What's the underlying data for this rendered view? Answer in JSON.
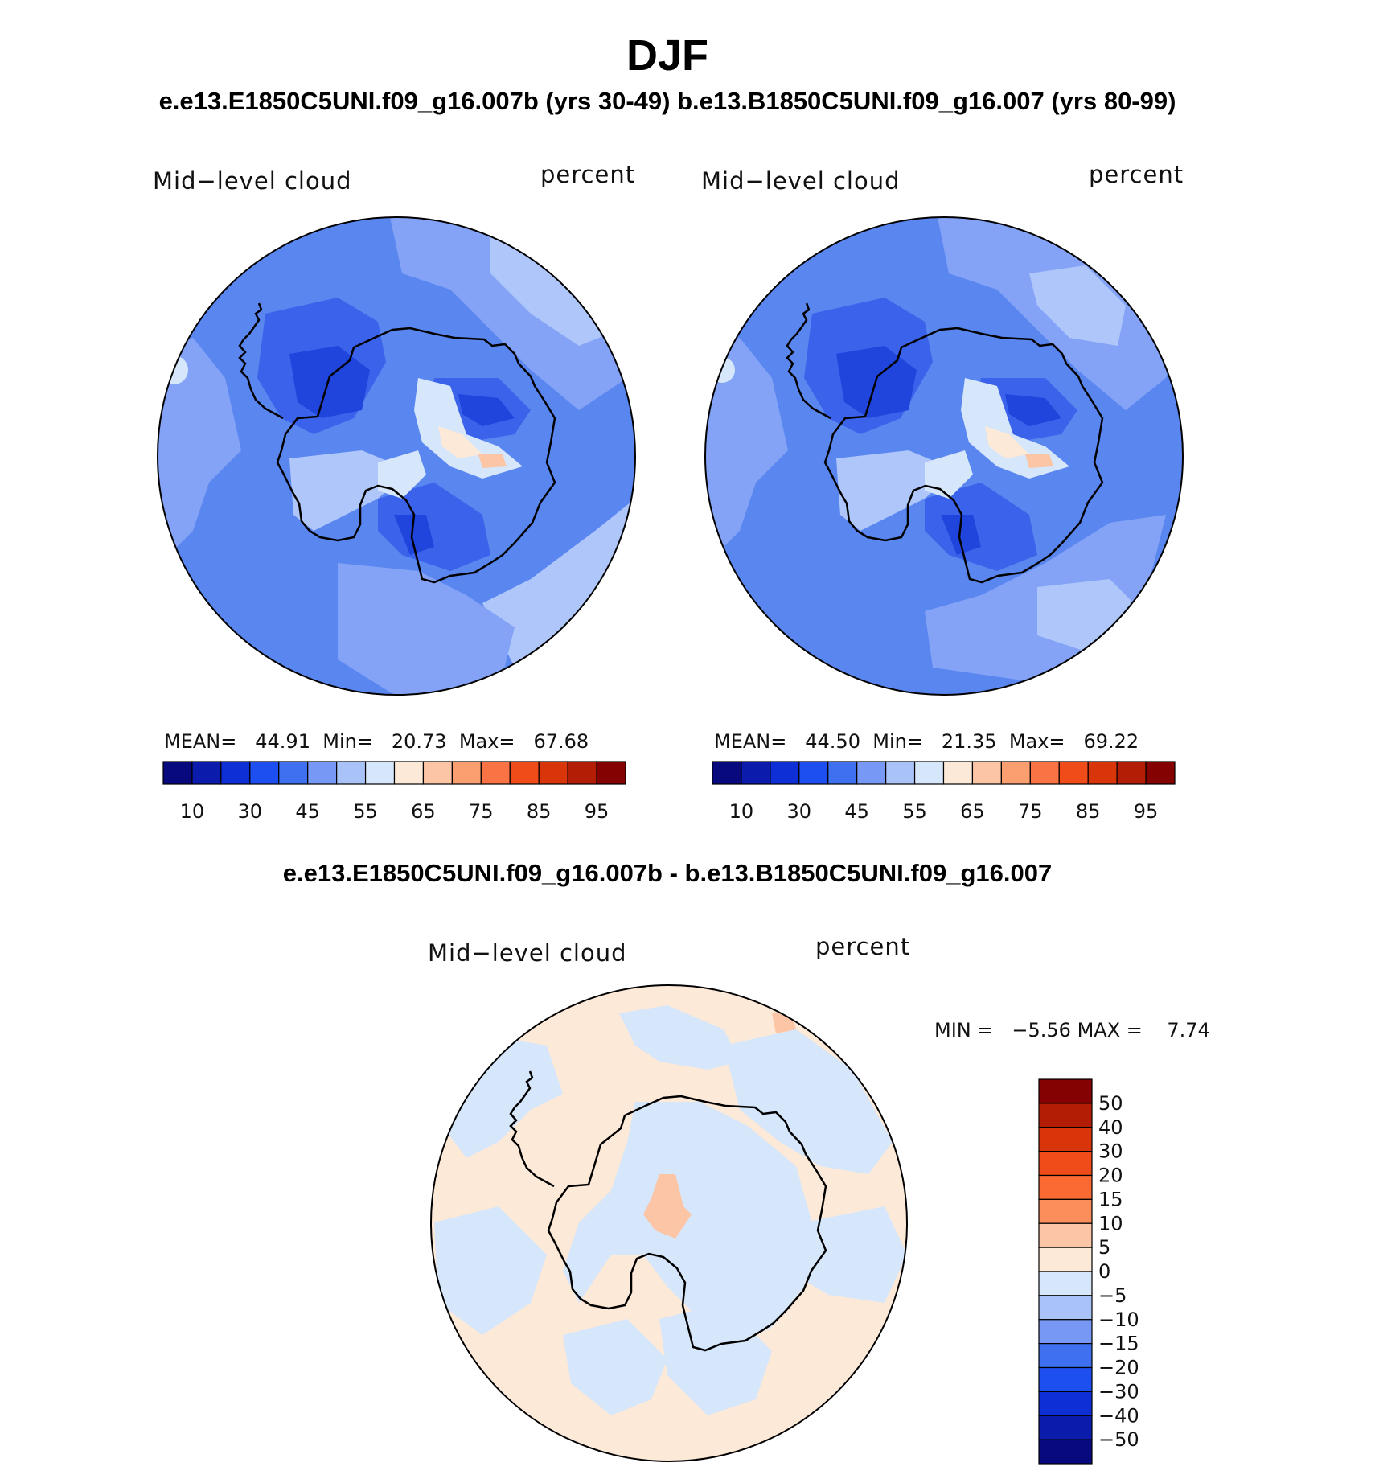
{
  "title": "DJF",
  "subtitle": "e.e13.E1850C5UNI.f09_g16.007b (yrs 30-49)  b.e13.B1850C5UNI.f09_g16.007 (yrs 80-99)",
  "diff_title": "e.e13.E1850C5UNI.f09_g16.007b - b.e13.B1850C5UNI.f09_g16.007",
  "panels": [
    {
      "variable": "Mid−level cloud",
      "units": "percent",
      "mean_label": "MEAN=",
      "mean": "44.91",
      "min_label": "Min=",
      "min": "20.73",
      "max_label": "Max=",
      "max": "67.68"
    },
    {
      "variable": "Mid−level cloud",
      "units": "percent",
      "mean_label": "MEAN=",
      "mean": "44.50",
      "min_label": "Min=",
      "min": "21.35",
      "max_label": "Max=",
      "max": "69.22"
    }
  ],
  "diff_panel": {
    "variable": "Mid−level cloud",
    "units": "percent",
    "min_label": "MIN =",
    "min": "−5.56",
    "max_label": "MAX =",
    "max": "7.74"
  },
  "colorbar": {
    "colors": [
      "#08097d",
      "#0b1bab",
      "#0f2fd6",
      "#1d4ff0",
      "#3f70f0",
      "#7898f5",
      "#a9c2f8",
      "#d6e6fb",
      "#fde9d8",
      "#fcc5a5",
      "#fb9e70",
      "#fa7344",
      "#f04c1a",
      "#d9350a",
      "#b31d05",
      "#850202"
    ],
    "tick_labels": [
      "10",
      "30",
      "45",
      "55",
      "65",
      "75",
      "85",
      "95"
    ]
  },
  "diff_colorbar": {
    "colors": [
      "#850202",
      "#b31d05",
      "#d9350a",
      "#f04c1a",
      "#fb6a33",
      "#fb8e5a",
      "#fcc5a5",
      "#fde9d8",
      "#d6e6fb",
      "#a9c2f8",
      "#7898f5",
      "#3f70f0",
      "#1d4ff0",
      "#0f2fd6",
      "#0b1bab",
      "#08097d"
    ],
    "tick_labels": [
      "50",
      "40",
      "30",
      "20",
      "15",
      "10",
      "5",
      "0",
      "−5",
      "−10",
      "−15",
      "−20",
      "−30",
      "−40",
      "−50"
    ]
  },
  "map_colors": {
    "base": "#5a86f0",
    "light": "#84a3f6",
    "lighter": "#aec6f9",
    "pale": "#d6e6fb",
    "dark": "#3a62ea",
    "darker": "#1f45dd",
    "white": "#eef3ff",
    "peach": "#fde9d8",
    "salmon": "#fcc5a5",
    "diff_base": "#fde9d8",
    "diff_blue": "#d6e6fb",
    "diff_salmon": "#fcc5a5"
  }
}
